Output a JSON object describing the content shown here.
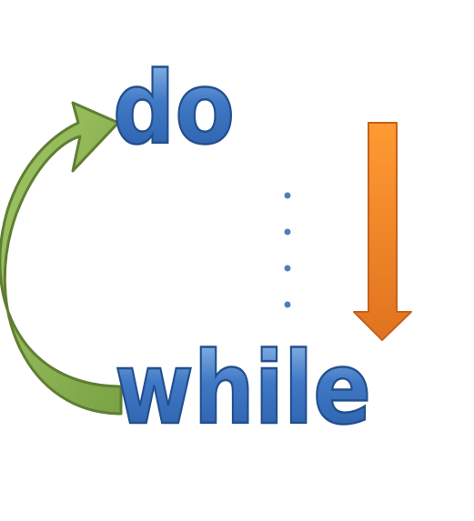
{
  "diagram": {
    "keyword_top": "do",
    "keyword_bottom": "while",
    "continuation_dots": 4,
    "colors": {
      "text_gradient_top": "#9cc2ee",
      "text_gradient_mid": "#3f78c4",
      "text_gradient_bottom": "#2a5ea8",
      "text_outline": "#234f8e",
      "loop_arrow_fill": "#8db556",
      "loop_arrow_stroke": "#5f7e33",
      "flow_arrow_top": "#ff9a33",
      "flow_arrow_bottom": "#e0731f",
      "flow_arrow_stroke": "#c7601a",
      "dot_color": "#4f7fba"
    },
    "icons": {
      "loop_arrow": "curved-loop-back-arrow-icon",
      "flow_arrow": "down-arrow-icon"
    }
  }
}
